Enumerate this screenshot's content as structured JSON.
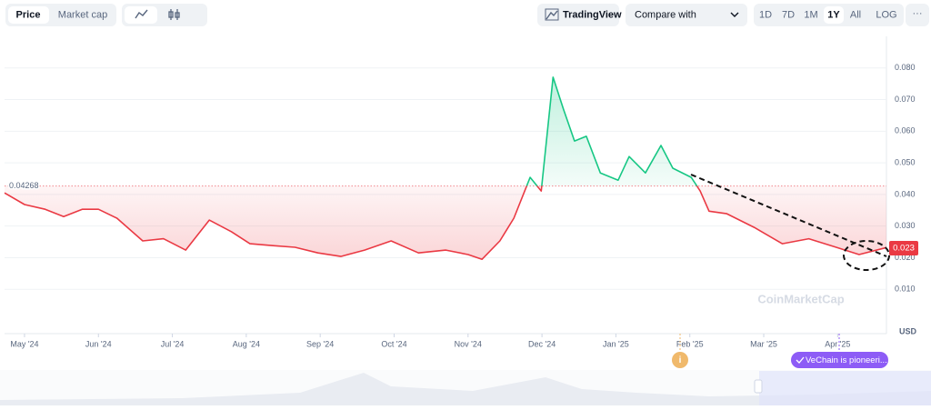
{
  "toolbar": {
    "tabs": [
      "Price",
      "Market cap"
    ],
    "tradingview": "TradingView",
    "compare": "Compare with",
    "ranges": [
      "1D",
      "7D",
      "1M",
      "1Y",
      "All",
      "LOG"
    ],
    "more": "···"
  },
  "chart_data": {
    "type": "line",
    "x": [
      -0.27,
      0,
      0.28,
      0.53,
      0.78,
      1.0,
      1.25,
      1.6,
      1.88,
      2.18,
      2.5,
      2.8,
      3.05,
      3.36,
      3.66,
      3.97,
      4.28,
      4.6,
      4.96,
      5.33,
      5.7,
      6.0,
      6.19,
      6.43,
      6.62,
      6.84,
      6.99,
      7.15,
      7.29,
      7.44,
      7.6,
      7.79,
      8.03,
      8.18,
      8.4,
      8.61,
      8.77,
      9.02,
      9.14,
      9.26,
      9.5,
      9.87,
      10.25,
      10.61,
      10.98,
      11.29,
      11.66
    ],
    "values": [
      0.0405,
      0.0368,
      0.0353,
      0.033,
      0.0353,
      0.0353,
      0.0325,
      0.0253,
      0.026,
      0.0224,
      0.0319,
      0.0282,
      0.0244,
      0.0238,
      0.0233,
      0.0215,
      0.0204,
      0.0224,
      0.0253,
      0.0215,
      0.0224,
      0.021,
      0.0195,
      0.0253,
      0.0325,
      0.0454,
      0.0411,
      0.0771,
      0.067,
      0.0569,
      0.0584,
      0.0468,
      0.0445,
      0.052,
      0.0468,
      0.0555,
      0.0483,
      0.0454,
      0.0411,
      0.0347,
      0.0339,
      0.0296,
      0.0244,
      0.026,
      0.0233,
      0.021,
      0.0232
    ],
    "up_color": "#16c784",
    "down_color": "#ea3943",
    "baseline": 0.04268,
    "current_price": 0.023,
    "xlim": [
      -0.27,
      11.66
    ],
    "xticks": [
      {
        "value": 0,
        "label": "May '24"
      },
      {
        "value": 1,
        "label": "Jun '24"
      },
      {
        "value": 2,
        "label": "Jul '24"
      },
      {
        "value": 3,
        "label": "Aug '24"
      },
      {
        "value": 4,
        "label": "Sep '24"
      },
      {
        "value": 5,
        "label": "Oct '24"
      },
      {
        "value": 6,
        "label": "Nov '24"
      },
      {
        "value": 7,
        "label": "Dec '24"
      },
      {
        "value": 8,
        "label": "Jan '25"
      },
      {
        "value": 9,
        "label": "Feb '25"
      },
      {
        "value": 10,
        "label": "Mar '25"
      },
      {
        "value": 11,
        "label": "Apr '25"
      }
    ],
    "ylim": [
      0,
      0.09
    ],
    "yticks": [
      {
        "value": 0.01,
        "label": "0.010"
      },
      {
        "value": 0.02,
        "label": "0.020"
      },
      {
        "value": 0.03,
        "label": "0.030"
      },
      {
        "value": 0.04,
        "label": "0.040"
      },
      {
        "value": 0.05,
        "label": "0.050"
      },
      {
        "value": 0.06,
        "label": "0.060"
      },
      {
        "value": 0.07,
        "label": "0.070"
      },
      {
        "value": 0.08,
        "label": "0.080"
      }
    ],
    "grid": true,
    "y_unit": "USD",
    "watermark": "CoinMarketCap",
    "event_marker": "i",
    "annotation": "VeChain is pioneeri..."
  }
}
